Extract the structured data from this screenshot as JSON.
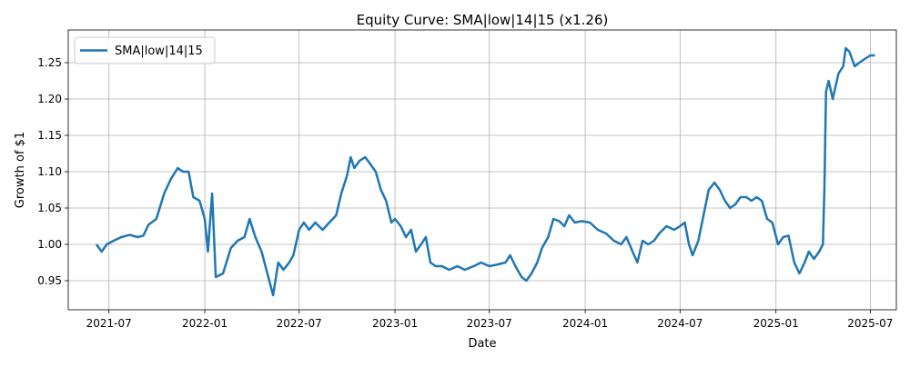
{
  "chart_data": {
    "type": "line",
    "title": "Equity Curve: SMA|low|14|15 (x1.26)",
    "xlabel": "Date",
    "ylabel": "Growth of $1",
    "xlim": [
      "2021-04-14",
      "2025-08-20"
    ],
    "ylim": [
      0.91,
      1.295
    ],
    "grid": true,
    "legend_position": "upper-left",
    "x_ticks": [
      "2021-07-01",
      "2022-01-01",
      "2022-07-01",
      "2023-01-01",
      "2023-07-01",
      "2024-01-01",
      "2024-07-01",
      "2025-01-01",
      "2025-07-01"
    ],
    "x_tick_labels": [
      "2021-07",
      "2022-01",
      "2022-07",
      "2023-01",
      "2023-07",
      "2024-01",
      "2024-07",
      "2025-01",
      "2025-07"
    ],
    "y_ticks": [
      0.95,
      1.0,
      1.05,
      1.1,
      1.15,
      1.2,
      1.25
    ],
    "y_tick_labels": [
      "0.95",
      "1.00",
      "1.05",
      "1.10",
      "1.15",
      "1.20",
      "1.25"
    ],
    "series": [
      {
        "name": "SMA|low|14|15",
        "color": "#1f77b4",
        "points": [
          [
            "2021-06-07",
            1.0
          ],
          [
            "2021-06-17",
            0.99
          ],
          [
            "2021-06-27",
            1.0
          ],
          [
            "2021-07-10",
            1.005
          ],
          [
            "2021-07-25",
            1.01
          ],
          [
            "2021-08-10",
            1.013
          ],
          [
            "2021-08-25",
            1.01
          ],
          [
            "2021-09-05",
            1.012
          ],
          [
            "2021-09-15",
            1.027
          ],
          [
            "2021-09-30",
            1.035
          ],
          [
            "2021-10-15",
            1.07
          ],
          [
            "2021-10-28",
            1.09
          ],
          [
            "2021-11-10",
            1.105
          ],
          [
            "2021-11-20",
            1.1
          ],
          [
            "2021-12-01",
            1.1
          ],
          [
            "2021-12-10",
            1.065
          ],
          [
            "2021-12-22",
            1.06
          ],
          [
            "2022-01-01",
            1.035
          ],
          [
            "2022-01-07",
            0.99
          ],
          [
            "2022-01-15",
            1.07
          ],
          [
            "2022-01-22",
            0.955
          ],
          [
            "2022-02-05",
            0.96
          ],
          [
            "2022-02-20",
            0.995
          ],
          [
            "2022-03-05",
            1.005
          ],
          [
            "2022-03-18",
            1.01
          ],
          [
            "2022-03-28",
            1.035
          ],
          [
            "2022-04-08",
            1.01
          ],
          [
            "2022-04-20",
            0.99
          ],
          [
            "2022-05-01",
            0.96
          ],
          [
            "2022-05-12",
            0.93
          ],
          [
            "2022-05-22",
            0.975
          ],
          [
            "2022-06-01",
            0.965
          ],
          [
            "2022-06-12",
            0.975
          ],
          [
            "2022-06-20",
            0.985
          ],
          [
            "2022-07-01",
            1.02
          ],
          [
            "2022-07-10",
            1.03
          ],
          [
            "2022-07-20",
            1.02
          ],
          [
            "2022-08-01",
            1.03
          ],
          [
            "2022-08-15",
            1.02
          ],
          [
            "2022-08-28",
            1.03
          ],
          [
            "2022-09-10",
            1.04
          ],
          [
            "2022-09-20",
            1.07
          ],
          [
            "2022-10-01",
            1.095
          ],
          [
            "2022-10-08",
            1.12
          ],
          [
            "2022-10-15",
            1.105
          ],
          [
            "2022-10-25",
            1.115
          ],
          [
            "2022-11-05",
            1.12
          ],
          [
            "2022-11-15",
            1.11
          ],
          [
            "2022-11-25",
            1.1
          ],
          [
            "2022-12-05",
            1.075
          ],
          [
            "2022-12-15",
            1.06
          ],
          [
            "2022-12-25",
            1.03
          ],
          [
            "2023-01-01",
            1.035
          ],
          [
            "2023-01-12",
            1.025
          ],
          [
            "2023-01-22",
            1.01
          ],
          [
            "2023-02-01",
            1.02
          ],
          [
            "2023-02-10",
            0.99
          ],
          [
            "2023-02-20",
            1.0
          ],
          [
            "2023-03-01",
            1.01
          ],
          [
            "2023-03-10",
            0.975
          ],
          [
            "2023-03-20",
            0.97
          ],
          [
            "2023-04-01",
            0.97
          ],
          [
            "2023-04-15",
            0.965
          ],
          [
            "2023-05-01",
            0.97
          ],
          [
            "2023-05-15",
            0.965
          ],
          [
            "2023-06-01",
            0.97
          ],
          [
            "2023-06-15",
            0.975
          ],
          [
            "2023-07-01",
            0.97
          ],
          [
            "2023-07-15",
            0.972
          ],
          [
            "2023-08-01",
            0.975
          ],
          [
            "2023-08-10",
            0.985
          ],
          [
            "2023-08-20",
            0.97
          ],
          [
            "2023-09-01",
            0.955
          ],
          [
            "2023-09-10",
            0.95
          ],
          [
            "2023-09-20",
            0.96
          ],
          [
            "2023-10-01",
            0.975
          ],
          [
            "2023-10-10",
            0.995
          ],
          [
            "2023-10-22",
            1.01
          ],
          [
            "2023-11-01",
            1.035
          ],
          [
            "2023-11-12",
            1.032
          ],
          [
            "2023-11-22",
            1.025
          ],
          [
            "2023-12-01",
            1.04
          ],
          [
            "2023-12-12",
            1.03
          ],
          [
            "2023-12-25",
            1.032
          ],
          [
            "2024-01-10",
            1.03
          ],
          [
            "2024-01-25",
            1.02
          ],
          [
            "2024-02-10",
            1.015
          ],
          [
            "2024-02-25",
            1.005
          ],
          [
            "2024-03-10",
            1.0
          ],
          [
            "2024-03-20",
            1.01
          ],
          [
            "2024-04-01",
            0.99
          ],
          [
            "2024-04-10",
            0.975
          ],
          [
            "2024-04-20",
            1.005
          ],
          [
            "2024-05-01",
            1.0
          ],
          [
            "2024-05-12",
            1.005
          ],
          [
            "2024-05-22",
            1.015
          ],
          [
            "2024-06-05",
            1.025
          ],
          [
            "2024-06-20",
            1.02
          ],
          [
            "2024-07-01",
            1.025
          ],
          [
            "2024-07-10",
            1.03
          ],
          [
            "2024-07-18",
            1.0
          ],
          [
            "2024-07-25",
            0.985
          ],
          [
            "2024-08-05",
            1.005
          ],
          [
            "2024-08-15",
            1.04
          ],
          [
            "2024-08-25",
            1.075
          ],
          [
            "2024-09-05",
            1.085
          ],
          [
            "2024-09-15",
            1.075
          ],
          [
            "2024-09-25",
            1.06
          ],
          [
            "2024-10-05",
            1.05
          ],
          [
            "2024-10-15",
            1.055
          ],
          [
            "2024-10-25",
            1.065
          ],
          [
            "2024-11-05",
            1.065
          ],
          [
            "2024-11-15",
            1.06
          ],
          [
            "2024-11-25",
            1.065
          ],
          [
            "2024-12-05",
            1.06
          ],
          [
            "2024-12-15",
            1.035
          ],
          [
            "2024-12-25",
            1.03
          ],
          [
            "2025-01-05",
            1.0
          ],
          [
            "2025-01-15",
            1.01
          ],
          [
            "2025-01-25",
            1.012
          ],
          [
            "2025-02-05",
            0.975
          ],
          [
            "2025-02-15",
            0.96
          ],
          [
            "2025-02-25",
            0.975
          ],
          [
            "2025-03-05",
            0.99
          ],
          [
            "2025-03-15",
            0.98
          ],
          [
            "2025-03-25",
            0.99
          ],
          [
            "2025-04-01",
            1.0
          ],
          [
            "2025-04-04",
            1.08
          ],
          [
            "2025-04-07",
            1.21
          ],
          [
            "2025-04-12",
            1.225
          ],
          [
            "2025-04-20",
            1.2
          ],
          [
            "2025-05-01",
            1.235
          ],
          [
            "2025-05-10",
            1.245
          ],
          [
            "2025-05-15",
            1.27
          ],
          [
            "2025-05-22",
            1.265
          ],
          [
            "2025-06-01",
            1.245
          ],
          [
            "2025-06-10",
            1.25
          ],
          [
            "2025-06-20",
            1.255
          ],
          [
            "2025-07-01",
            1.26
          ],
          [
            "2025-07-10",
            1.26
          ]
        ]
      }
    ]
  }
}
